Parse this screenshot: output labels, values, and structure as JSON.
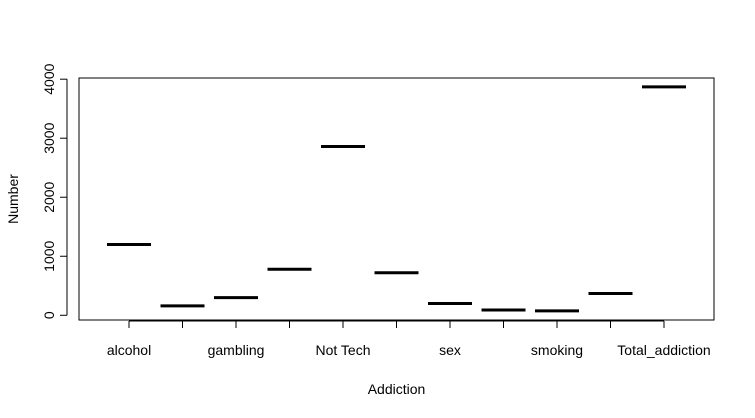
{
  "chart_data": {
    "type": "bar",
    "style": "boxplot-median-lines",
    "categories": [
      "alcohol",
      "",
      "gambling",
      "",
      "Not Tech",
      "",
      "sex",
      "",
      "smoking",
      "",
      "Total_addiction"
    ],
    "values": [
      1200,
      160,
      300,
      780,
      2860,
      720,
      200,
      90,
      75,
      370,
      3870
    ],
    "xlabel": "Addiction",
    "ylabel": "Number",
    "ylim": [
      -80,
      4020
    ],
    "yticks": [
      0,
      1000,
      2000,
      3000,
      4000
    ],
    "grid": false,
    "legend": "none"
  }
}
